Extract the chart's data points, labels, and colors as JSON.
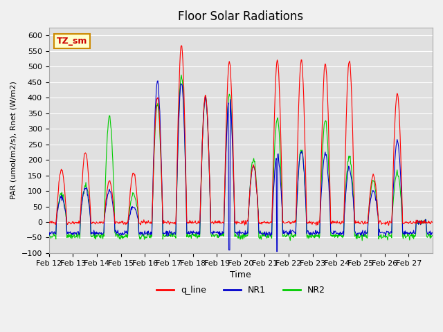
{
  "title": "Floor Solar Radiations",
  "xlabel": "Time",
  "ylabel": "PAR (umol/m2/s), Rnet (W/m2)",
  "ylim": [
    -100,
    625
  ],
  "yticks": [
    -100,
    -50,
    0,
    50,
    100,
    150,
    200,
    250,
    300,
    350,
    400,
    450,
    500,
    550,
    600
  ],
  "xtick_labels": [
    "Feb 12",
    "Feb 13",
    "Feb 14",
    "Feb 15",
    "Feb 16",
    "Feb 17",
    "Feb 18",
    "Feb 19",
    "Feb 20",
    "Feb 21",
    "Feb 22",
    "Feb 23",
    "Feb 24",
    "Feb 25",
    "Feb 26",
    "Feb 27"
  ],
  "legend_labels": [
    "q_line",
    "NR1",
    "NR2"
  ],
  "legend_colors": [
    "#ff0000",
    "#0000cc",
    "#00cc00"
  ],
  "line_colors": {
    "q_line": "#ff0000",
    "NR1": "#0000cc",
    "NR2": "#00cc00"
  },
  "annotation_text": "TZ_sm",
  "annotation_color": "#cc0000",
  "annotation_bg": "#ffffcc",
  "bg_color": "#e0e0e0",
  "grid_color": "#ffffff",
  "n_days": 16,
  "points_per_day": 48,
  "q_peaks": [
    170,
    225,
    130,
    160,
    400,
    570,
    405,
    515,
    185,
    520,
    520,
    510,
    520,
    150,
    415,
    0
  ],
  "nr1_peaks": [
    80,
    110,
    100,
    50,
    450,
    450,
    400,
    400,
    180,
    220,
    230,
    220,
    175,
    100,
    260,
    0
  ],
  "nr2_peaks": [
    90,
    120,
    340,
    90,
    380,
    470,
    400,
    410,
    200,
    330,
    235,
    325,
    210,
    130,
    160,
    0
  ],
  "q_night": -2,
  "nr1_night": -35,
  "nr2_night": -45
}
